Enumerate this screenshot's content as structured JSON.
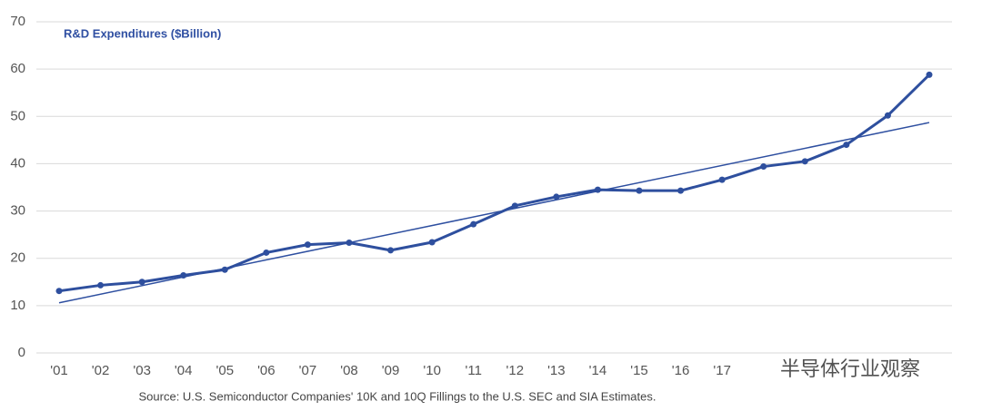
{
  "chart_data": {
    "type": "line",
    "title": "R&D Expenditures ($Billion)",
    "source": "Source: U.S. Semiconductor Companies' 10K and 10Q Fillings to the U.S. SEC and SIA Estimates.",
    "watermark": "半导体行业观察",
    "categories": [
      "'01",
      "'02",
      "'03",
      "'04",
      "'05",
      "'06",
      "'07",
      "'08",
      "'09",
      "'10",
      "'11",
      "'12",
      "'13",
      "'14",
      "'15",
      "'16",
      "'17",
      null,
      null,
      null,
      null,
      null
    ],
    "series": [
      {
        "color": "#2e4f9e",
        "values": [
          13.1,
          14.3,
          15.0,
          16.4,
          17.6,
          21.2,
          22.9,
          23.3,
          21.7,
          23.4,
          27.2,
          31.1,
          33.0,
          34.5,
          34.3,
          34.3,
          36.6,
          39.4,
          40.5,
          44.0,
          50.2,
          58.8
        ]
      }
    ],
    "trendline": {
      "color": "#2e4fa0",
      "start": 10.6,
      "end": 48.7
    },
    "ylim": [
      0,
      70
    ],
    "yticks": [
      0,
      10,
      20,
      30,
      40,
      50,
      60,
      70
    ],
    "grid": true
  }
}
